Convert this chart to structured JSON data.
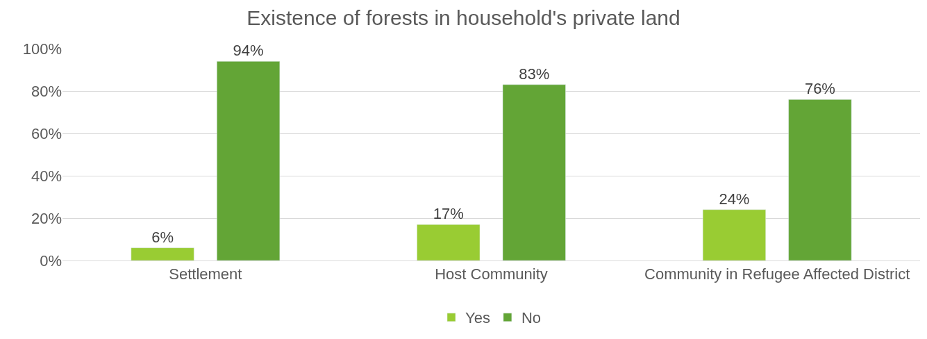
{
  "chart_data": {
    "type": "bar",
    "title": "Existence of forests in household's private land",
    "categories": [
      "Settlement",
      "Host Community",
      "Community in Refugee Affected District"
    ],
    "series": [
      {
        "name": "Yes",
        "color": "#99cc33",
        "values": [
          6,
          17,
          24
        ],
        "value_labels": [
          "6%",
          "17%",
          "24%"
        ]
      },
      {
        "name": "No",
        "color": "#63a536",
        "values": [
          94,
          83,
          76
        ],
        "value_labels": [
          "94%",
          "83%",
          "76%"
        ]
      }
    ],
    "ylim": [
      0,
      100
    ],
    "yticks": [
      {
        "value": 0,
        "label": "0%"
      },
      {
        "value": 20,
        "label": "20%"
      },
      {
        "value": 40,
        "label": "40%"
      },
      {
        "value": 60,
        "label": "60%"
      },
      {
        "value": 80,
        "label": "80%"
      },
      {
        "value": 100,
        "label": "100%"
      }
    ],
    "grid": "y",
    "legend": "bottom"
  }
}
